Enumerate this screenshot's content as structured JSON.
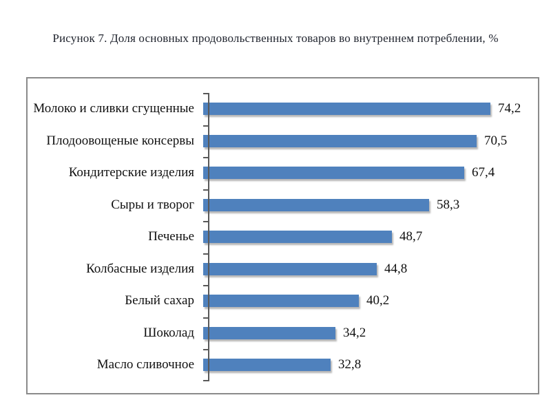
{
  "figure_caption": "Рисунок 7. Доля основных продовольственных товаров во внутреннем потреблении, %",
  "chart_data": {
    "type": "bar",
    "orientation": "horizontal",
    "title": "Рисунок 7. Доля основных продовольственных товаров во внутреннем потреблении, %",
    "categories": [
      "Молоко и сливки сгущенные",
      "Плодоовощеные консервы",
      "Кондитерские изделия",
      "Сыры и творог",
      "Печенье",
      "Колбасные изделия",
      "Белый сахар",
      "Шоколад",
      "Масло сливочное"
    ],
    "values": [
      74.2,
      70.5,
      67.4,
      58.3,
      48.7,
      44.8,
      40.2,
      34.2,
      32.8
    ],
    "value_labels": [
      "74,2",
      "70,5",
      "67,4",
      "58,3",
      "48,7",
      "44,8",
      "40,2",
      "34,2",
      "32,8"
    ],
    "xlabel": "",
    "ylabel": "",
    "xlim": [
      0,
      80
    ],
    "grid": false,
    "legend": false,
    "data_labels": true,
    "bar_color": "#4f81bd",
    "axis_color": "#595959",
    "frame_border_color": "#8a8a8a",
    "text_color": "#111111",
    "title_color": "#20242e"
  }
}
